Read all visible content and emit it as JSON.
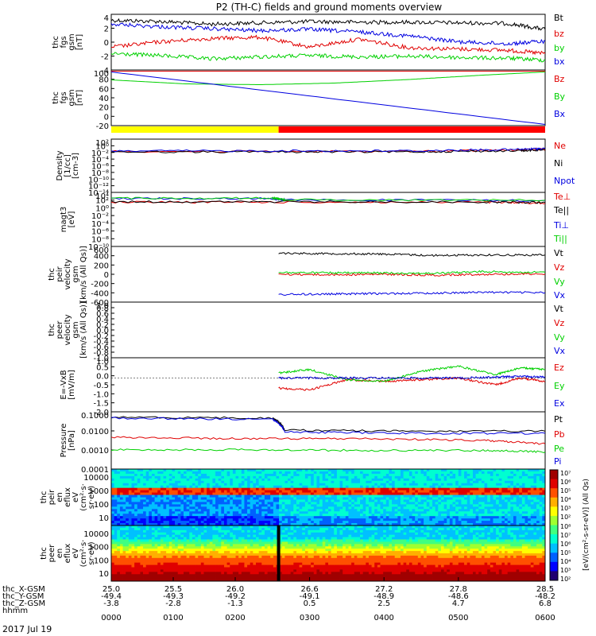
{
  "title": "P2 (TH-C) fields and ground moments overview",
  "date_label": "2017 Jul 19",
  "colors": {
    "black": "#000000",
    "red": "#e00000",
    "green": "#00d000",
    "blue": "#0000e0",
    "yellow": "#ffff00",
    "bar_red": "#ff0000"
  },
  "chart_data": [
    {
      "type": "line",
      "ylabel": [
        "thc",
        "fgs",
        "gsm",
        "[nT]"
      ],
      "yticks": [
        "4",
        "2",
        "0",
        "-2",
        "-4"
      ],
      "ylim": [
        -4,
        4.5
      ],
      "series": [
        {
          "name": "Bt",
          "color": "#000000",
          "x": [
            25.0,
            25.4,
            25.8,
            26.2,
            26.6,
            27.0,
            27.4,
            27.8,
            28.2,
            28.5
          ],
          "y": [
            3.6,
            3.4,
            3.0,
            3.2,
            3.4,
            3.3,
            3.3,
            3.2,
            3.1,
            2.2
          ]
        },
        {
          "name": "bz",
          "color": "#e00000",
          "x": [
            25.0,
            25.4,
            25.8,
            26.2,
            26.6,
            27.0,
            27.4,
            27.8,
            28.2,
            28.5
          ],
          "y": [
            -0.5,
            0.3,
            0.8,
            1.0,
            -0.5,
            0.7,
            -0.6,
            -0.8,
            -1.0,
            -1.5
          ]
        },
        {
          "name": "by",
          "color": "#00d000",
          "x": [
            25.0,
            25.4,
            25.8,
            26.2,
            26.6,
            27.0,
            27.4,
            27.8,
            28.2,
            28.5
          ],
          "y": [
            -1.5,
            -1.8,
            -2.3,
            -2.0,
            -1.8,
            -2.0,
            -1.9,
            -2.1,
            -2.2,
            -2.5
          ]
        },
        {
          "name": "bx",
          "color": "#0000e0",
          "x": [
            25.0,
            25.4,
            25.8,
            26.2,
            26.6,
            27.0,
            27.4,
            27.8,
            28.2,
            28.5
          ],
          "y": [
            3.0,
            2.6,
            2.3,
            2.0,
            2.2,
            1.8,
            1.2,
            0.3,
            0.0,
            0.4
          ]
        }
      ]
    },
    {
      "type": "line",
      "ylabel": [
        "thc",
        "fgs",
        "gsm",
        "[nT]"
      ],
      "yticks": [
        "100",
        "80",
        "60",
        "40",
        "20",
        "0",
        "-20"
      ],
      "ylim": [
        -35,
        105
      ],
      "series": [
        {
          "name": "Bz",
          "color": "#e00000",
          "x": [
            25.0,
            28.5
          ],
          "y": [
            102,
            102
          ]
        },
        {
          "name": "By",
          "color": "#00d000",
          "x": [
            25.0,
            25.6,
            26.2,
            26.8,
            27.4,
            28.0,
            28.5
          ],
          "y": [
            80,
            70,
            68,
            72,
            81,
            92,
            100
          ]
        },
        {
          "name": "Bx",
          "color": "#0000e0",
          "x": [
            25.0,
            28.5
          ],
          "y": [
            100,
            -32
          ]
        }
      ]
    },
    {
      "type": "bar",
      "segments": [
        {
          "from": 25.0,
          "to": 26.35,
          "color": "#ffff00"
        },
        {
          "from": 26.35,
          "to": 28.5,
          "color": "#ff0000"
        }
      ]
    },
    {
      "type": "line",
      "log": true,
      "ylabel": [
        "Density",
        "[1/cc]",
        "[cm-3]"
      ],
      "yticks": [
        "10²",
        "10⁰",
        "10⁻²",
        "10⁻⁴",
        "10⁻⁶",
        "10⁻⁸",
        "10⁻¹⁰",
        "10⁻¹²",
        "10⁻¹⁴"
      ],
      "ylim": [
        -14,
        2
      ],
      "series": [
        {
          "name": "Ne",
          "color": "#e00000",
          "x": [
            25.0,
            26.35,
            27.5,
            28.3,
            28.5
          ],
          "y": [
            0.02,
            0.02,
            0.02,
            0.05,
            0.1
          ]
        },
        {
          "name": "Ni",
          "color": "#000000",
          "x": [
            25.0,
            26.35,
            27.5,
            28.3,
            28.5
          ],
          "y": [
            0.015,
            0.015,
            0.015,
            0.03,
            0.06
          ]
        },
        {
          "name": "Npot",
          "color": "#0000e0",
          "x": [
            25.0,
            26.35,
            27.5,
            28.3,
            28.5
          ],
          "y": [
            0.03,
            0.03,
            0.03,
            0.08,
            0.15
          ]
        }
      ]
    },
    {
      "type": "line",
      "log": true,
      "ylabel": [
        "magt3",
        "[eV]"
      ],
      "yticks": [
        "10⁴",
        "10²",
        "10⁰",
        "10⁻²",
        "10⁻⁴",
        "10⁻⁶",
        "10⁻⁸",
        "10⁻¹⁰"
      ],
      "ylim": [
        -10,
        5
      ],
      "series": [
        {
          "name": "Te⊥",
          "color": "#e00000",
          "x": [
            25.0,
            26.35,
            28.0,
            28.5
          ],
          "y": [
            200,
            200,
            180,
            100
          ]
        },
        {
          "name": "Te||",
          "color": "#000000",
          "x": [
            25.0,
            26.35,
            28.0,
            28.5
          ],
          "y": [
            250,
            250,
            220,
            150
          ]
        },
        {
          "name": "Ti⊥",
          "color": "#0000e0",
          "x": [
            25.0,
            26.3,
            26.4,
            28.5
          ],
          "y": [
            2000,
            2000,
            800,
            600
          ]
        },
        {
          "name": "Ti||",
          "color": "#00d000",
          "x": [
            25.0,
            26.3,
            26.4,
            28.5
          ],
          "y": [
            2500,
            2500,
            900,
            700
          ]
        }
      ]
    },
    {
      "type": "line",
      "ylabel": [
        "thc",
        "peir",
        "velocity",
        "gsm",
        "[km/s (All Qs)]"
      ],
      "yticks": [
        "600",
        "400",
        "200",
        "0",
        "-200",
        "-400",
        "-600"
      ],
      "ylim": [
        -620,
        620
      ],
      "series": [
        {
          "name": "Vt",
          "color": "#000000",
          "x": [
            26.35,
            26.8,
            27.2,
            27.6,
            28.0,
            28.5
          ],
          "y": [
            470,
            460,
            450,
            420,
            430,
            430
          ]
        },
        {
          "name": "Vz",
          "color": "#e00000",
          "x": [
            26.35,
            26.8,
            27.2,
            27.6,
            28.0,
            28.5
          ],
          "y": [
            0,
            -10,
            0,
            -20,
            0,
            10
          ]
        },
        {
          "name": "Vy",
          "color": "#00d000",
          "x": [
            26.35,
            26.8,
            27.2,
            27.6,
            28.0,
            28.5
          ],
          "y": [
            40,
            30,
            30,
            20,
            60,
            40
          ]
        },
        {
          "name": "Vx",
          "color": "#0000e0",
          "x": [
            26.35,
            26.8,
            27.2,
            27.6,
            28.0,
            28.5
          ],
          "y": [
            -450,
            -440,
            -430,
            -420,
            -400,
            -410
          ]
        }
      ]
    },
    {
      "type": "line",
      "ylabel": [
        "thc",
        "peer",
        "velocity",
        "gsm",
        "[km/s (All Qs)]"
      ],
      "yticks": [
        "1.0",
        "0.8",
        "0.6",
        "0.4",
        "0.2",
        "0.0",
        "-0.2",
        "-0.4",
        "-0.6",
        "-0.8",
        "-1.0"
      ],
      "ylim": [
        -1.0,
        1.0
      ],
      "series": [
        {
          "name": "Vt",
          "color": "#000000",
          "x": [],
          "y": []
        },
        {
          "name": "Vz",
          "color": "#e00000",
          "x": [],
          "y": []
        },
        {
          "name": "Vy",
          "color": "#00d000",
          "x": [],
          "y": []
        },
        {
          "name": "Vx",
          "color": "#0000e0",
          "x": [],
          "y": []
        }
      ]
    },
    {
      "type": "line",
      "ylabel": [
        "E=-VxB",
        "[mV/m]"
      ],
      "yticks": [
        "1.0",
        "0.5",
        "0.0",
        "-0.5",
        "-1.0",
        "-1.5",
        "-2.0"
      ],
      "ylim": [
        -2.0,
        1.2
      ],
      "series": [
        {
          "name": "Ez",
          "color": "#e00000",
          "x": [
            26.35,
            26.6,
            26.9,
            27.2,
            27.5,
            27.8,
            28.1,
            28.3,
            28.5
          ],
          "y": [
            -0.6,
            -0.7,
            -0.1,
            -0.2,
            -0.1,
            0.0,
            -0.4,
            0.0,
            -0.2
          ]
        },
        {
          "name": "Ey",
          "color": "#00d000",
          "x": [
            26.35,
            26.6,
            26.9,
            27.2,
            27.5,
            27.8,
            28.1,
            28.3,
            28.5
          ],
          "y": [
            0.3,
            0.5,
            -0.1,
            -0.2,
            0.4,
            0.7,
            0.2,
            0.6,
            0.5
          ]
        },
        {
          "name": "Ex",
          "color": "#0000e0",
          "x": [
            26.35,
            26.6,
            26.9,
            27.2,
            27.5,
            27.8,
            28.1,
            28.3,
            28.5
          ],
          "y": [
            0.0,
            0.0,
            0.0,
            0.0,
            0.0,
            0.0,
            0.05,
            0.1,
            0.05
          ]
        }
      ]
    },
    {
      "type": "line",
      "log": true,
      "ylabel": [
        "Pressure",
        "[nPa]"
      ],
      "yticks": [
        "0.1000",
        "0.0100",
        "0.0010",
        "0.0001"
      ],
      "ylim": [
        -4,
        -0.8
      ],
      "series": [
        {
          "name": "Pt",
          "color": "#000000",
          "x": [
            25.0,
            26.3,
            26.4,
            27.4,
            28.5
          ],
          "y": [
            0.08,
            0.07,
            0.015,
            0.013,
            0.013
          ]
        },
        {
          "name": "Pb",
          "color": "#e00000",
          "x": [
            25.0,
            26.0,
            27.0,
            28.0,
            28.5
          ],
          "y": [
            0.006,
            0.005,
            0.005,
            0.004,
            0.0025
          ]
        },
        {
          "name": "Pe",
          "color": "#00d000",
          "x": [
            25.0,
            26.0,
            27.0,
            28.0,
            28.5
          ],
          "y": [
            0.0012,
            0.0012,
            0.0011,
            0.0011,
            0.0009
          ]
        },
        {
          "name": "Pi",
          "color": "#0000e0",
          "x": [
            25.0,
            26.3,
            26.4,
            27.4,
            28.5
          ],
          "y": [
            0.07,
            0.06,
            0.012,
            0.01,
            0.01
          ]
        }
      ]
    },
    {
      "type": "heatmap",
      "ylabel": [
        "thc",
        "peir",
        "en",
        "eflux",
        "eV",
        "(cm²·s·",
        "sr·eV)"
      ],
      "yticks": [
        "10000",
        "1000",
        "100",
        "10"
      ],
      "ylim": [
        5,
        20000
      ]
    },
    {
      "type": "heatmap",
      "ylabel": [
        "thc",
        "peer",
        "en",
        "eflux",
        "eV",
        "(cm²·s·",
        "sr·eV)"
      ],
      "yticks": [
        "10000",
        "1000",
        "100",
        "10"
      ],
      "ylim": [
        5,
        20000
      ]
    }
  ],
  "colorbar": {
    "ticks_top": [
      "10⁷",
      "10⁶",
      "10⁵",
      "10⁴",
      "10³",
      "10²"
    ],
    "ticks_bottom": [
      "10⁸",
      "10⁷",
      "10⁶",
      "10⁵",
      "10⁴",
      "10³",
      "10²"
    ],
    "label": "[eV/(cm²-s-sr-eV)] (All Qs)"
  },
  "x_axis": {
    "ticks": [
      "25.0",
      "25.5",
      "26.0",
      "26.6",
      "27.2",
      "27.8",
      "28.5"
    ],
    "rows": [
      {
        "label": "thc_X-GSM",
        "values": [
          "-49.4",
          "-49.3",
          "-49.2",
          "-49.1",
          "-48.9",
          "-48.6",
          "-48.2"
        ]
      },
      {
        "label": "thc_Y-GSM",
        "values": [
          "-3.8",
          "-2.8",
          "-1.3",
          "0.5",
          "2.5",
          "4.7",
          "6.8"
        ]
      },
      {
        "label": "thc_Z-GSM",
        "values": [
          "",
          "",
          "",
          "",
          "",
          "",
          ""
        ]
      },
      {
        "label": "hhmm",
        "values": [
          "0000",
          "0100",
          "0200",
          "0300",
          "0400",
          "0500",
          "0600"
        ]
      }
    ]
  }
}
